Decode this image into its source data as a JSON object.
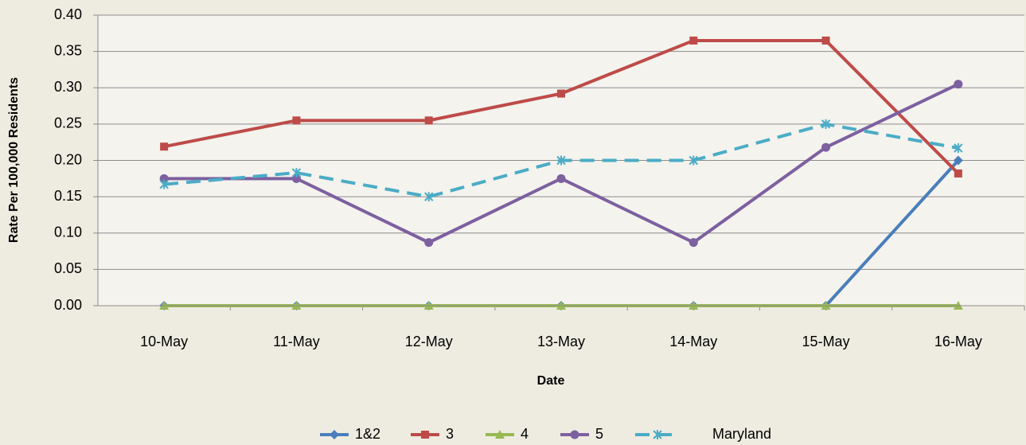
{
  "chart_data": {
    "type": "line",
    "x_label": "Date",
    "y_label": "Rate Per 100,000 Residents",
    "categories": [
      "10-May",
      "11-May",
      "12-May",
      "13-May",
      "14-May",
      "15-May",
      "16-May"
    ],
    "series": [
      {
        "name": "1&2",
        "color": "#4a7ebb",
        "marker": "diamond",
        "values": [
          0,
          0,
          0,
          0,
          0,
          0,
          0.2
        ]
      },
      {
        "name": "3",
        "color": "#be4b48",
        "marker": "square",
        "values": [
          0.219,
          0.255,
          0.255,
          0.292,
          0.365,
          0.365,
          0.182
        ]
      },
      {
        "name": "4",
        "color": "#98b954",
        "marker": "triangle",
        "values": [
          0,
          0,
          0,
          0,
          0,
          0,
          0
        ]
      },
      {
        "name": "5",
        "color": "#7d60a0",
        "marker": "circle",
        "values": [
          0.175,
          0.175,
          0.087,
          0.175,
          0.087,
          0.218,
          0.305
        ]
      },
      {
        "name": "Maryland",
        "color": "#4bacc6",
        "marker": "star",
        "dashed": true,
        "values": [
          0.167,
          0.183,
          0.15,
          0.2,
          0.2,
          0.25,
          0.217
        ]
      }
    ],
    "ylim": [
      0,
      0.4
    ],
    "yticks": [
      {
        "value": 0,
        "label": "0.00"
      },
      {
        "value": 0.05,
        "label": "0.05"
      },
      {
        "value": 0.1,
        "label": "0.10"
      },
      {
        "value": 0.15,
        "label": "0.15"
      },
      {
        "value": 0.2,
        "label": "0.20"
      },
      {
        "value": 0.25,
        "label": "0.25"
      },
      {
        "value": 0.3,
        "label": "0.30"
      },
      {
        "value": 0.35,
        "label": "0.35"
      },
      {
        "value": 0.4,
        "label": "0.40"
      }
    ],
    "grid": true,
    "legend": "bottom"
  }
}
